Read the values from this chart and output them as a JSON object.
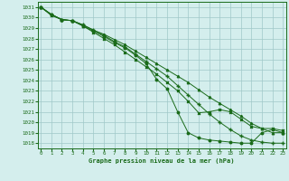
{
  "xlabel": "Graphe pression niveau de la mer (hPa)",
  "ylim": [
    1017.5,
    1031.5
  ],
  "xlim": [
    -0.3,
    23.3
  ],
  "yticks": [
    1018,
    1019,
    1020,
    1021,
    1022,
    1023,
    1024,
    1025,
    1026,
    1027,
    1028,
    1029,
    1030,
    1031
  ],
  "xticks": [
    0,
    1,
    2,
    3,
    4,
    5,
    6,
    7,
    8,
    9,
    10,
    11,
    12,
    13,
    14,
    15,
    16,
    17,
    18,
    19,
    20,
    21,
    22,
    23
  ],
  "bg_color": "#d4eeed",
  "grid_color": "#a0c8c8",
  "line_color": "#1a6b1a",
  "line1_x": [
    0,
    1,
    2,
    3,
    4,
    5,
    6,
    7,
    8,
    9,
    10,
    11,
    12,
    13,
    14,
    15,
    16,
    17,
    18,
    19,
    20,
    21,
    22,
    23
  ],
  "line1_y": [
    1031.0,
    1030.3,
    1029.8,
    1029.7,
    1029.3,
    1028.8,
    1028.4,
    1027.9,
    1027.4,
    1026.8,
    1026.2,
    1025.6,
    1025.0,
    1024.4,
    1023.8,
    1023.1,
    1022.4,
    1021.8,
    1021.2,
    1020.6,
    1019.9,
    1019.4,
    1019.0,
    1019.0
  ],
  "line2_x": [
    0,
    1,
    2,
    3,
    4,
    5,
    6,
    7,
    8,
    9,
    10,
    11,
    12,
    13,
    14,
    15,
    16,
    17,
    18,
    19,
    20,
    21,
    22,
    23
  ],
  "line2_y": [
    1031.0,
    1030.3,
    1029.8,
    1029.7,
    1029.3,
    1028.8,
    1028.3,
    1027.7,
    1027.2,
    1026.5,
    1025.8,
    1025.1,
    1024.4,
    1023.5,
    1022.6,
    1021.7,
    1020.8,
    1020.0,
    1019.3,
    1018.7,
    1018.3,
    1018.1,
    1018.0,
    1018.0
  ],
  "line3_x": [
    0,
    1,
    2,
    3,
    4,
    5,
    6,
    7,
    8,
    9,
    10,
    11,
    12,
    13,
    14,
    15,
    16,
    17,
    18,
    19,
    20,
    21,
    22,
    23
  ],
  "line3_y": [
    1031.0,
    1030.2,
    1029.8,
    1029.7,
    1029.2,
    1028.6,
    1028.0,
    1027.4,
    1026.7,
    1026.0,
    1025.3,
    1024.6,
    1023.8,
    1023.0,
    1022.0,
    1020.9,
    1021.0,
    1021.2,
    1021.0,
    1020.3,
    1019.6,
    1019.4,
    1019.4,
    1019.2
  ],
  "line4_x": [
    0,
    1,
    2,
    3,
    4,
    5,
    6,
    7,
    8,
    9,
    10,
    11,
    12,
    13,
    14,
    15,
    16,
    17,
    18,
    19,
    20,
    21,
    22,
    23
  ],
  "line4_y": [
    1031.0,
    1030.3,
    1029.8,
    1029.7,
    1029.2,
    1028.7,
    1028.2,
    1027.6,
    1027.1,
    1026.4,
    1025.6,
    1024.1,
    1023.2,
    1021.0,
    1019.0,
    1018.5,
    1018.3,
    1018.2,
    1018.1,
    1018.0,
    1018.0,
    1019.0,
    1019.3,
    1019.0
  ]
}
